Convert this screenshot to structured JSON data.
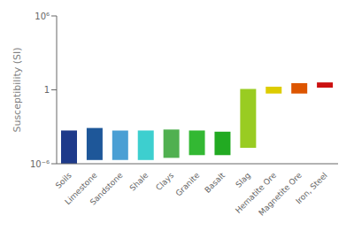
{
  "chart_data": {
    "type": "bar",
    "categories": [
      "Soils",
      "Limestone",
      "Sandstone",
      "Shale",
      "Clays",
      "Granite",
      "Basalt",
      "Slag",
      "Hematite Ore",
      "Magnetite Ore",
      "Iron, Steel"
    ],
    "lower": [
      1e-06,
      2e-06,
      2e-06,
      2e-06,
      3e-06,
      5e-06,
      5e-06,
      2e-05,
      0.5,
      0.5,
      1.5
    ],
    "upper": [
      0.0005,
      0.0008,
      0.0005,
      0.0005,
      0.0006,
      0.0005,
      0.0004,
      1.2,
      1.8,
      3.5,
      4.0
    ],
    "colors": [
      "#1e3a8a",
      "#1e5799",
      "#4a9fd4",
      "#3dcfcf",
      "#50b050",
      "#33b833",
      "#22aa22",
      "#99cc22",
      "#ddcc00",
      "#dd5500",
      "#cc1111"
    ],
    "ylabel": "Susceptibility (SI)",
    "ylim": [
      1e-06,
      1000000.0
    ],
    "yticks": [
      {
        "value": 1e-06,
        "label": "10⁻⁶"
      },
      1,
      {
        "value": 1000000.0,
        "label": "10⁶"
      }
    ],
    "log": "y",
    "grid": false
  }
}
